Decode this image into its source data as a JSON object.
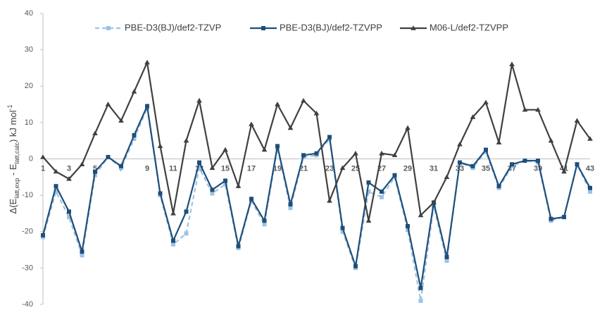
{
  "chart_data": {
    "type": "line",
    "y_label": [
      {
        "text": "Δ(E"
      },
      {
        "text": "latt,exp",
        "shift": "sub"
      },
      {
        "text": " - E"
      },
      {
        "text": "latt,calc",
        "shift": "sub"
      },
      {
        "text": ") kJ mol"
      },
      {
        "text": "-1",
        "shift": "super"
      }
    ],
    "categories": [
      1,
      null,
      3,
      null,
      5,
      null,
      7,
      null,
      9,
      null,
      11,
      null,
      13,
      null,
      15,
      null,
      17,
      null,
      19,
      null,
      21,
      null,
      23,
      null,
      25,
      null,
      27,
      null,
      29,
      null,
      31,
      null,
      33,
      null,
      35,
      null,
      37,
      null,
      39,
      null,
      41,
      null,
      43
    ],
    "series": [
      {
        "name": "PBE-D3(BJ)/def2-TZVP",
        "color": "#9dc3e6",
        "dash": true,
        "marker": "square",
        "values": [
          -21.5,
          -9,
          -16,
          -26.5,
          -4.5,
          0.5,
          -2.5,
          5.5,
          14,
          -10,
          -23.5,
          -20.5,
          -2.5,
          -9.5,
          -7,
          -24.5,
          -11.5,
          -18,
          3,
          -13.5,
          0.5,
          1,
          5.5,
          -20,
          -30,
          -9,
          -10.5,
          -5,
          -19.5,
          -39,
          -13,
          -28,
          -1,
          -2.5,
          2,
          -8,
          -2,
          -0.5,
          -1,
          -17,
          -16,
          -1.5,
          -9
        ]
      },
      {
        "name": "PBE-D3(BJ)/def2-TZVPP",
        "color": "#1f4e79",
        "dash": false,
        "marker": "square",
        "values": [
          -21,
          -7.5,
          -14.5,
          -25.5,
          -3.5,
          0.5,
          -2,
          6.5,
          14.5,
          -9.5,
          -22.5,
          -14.5,
          -1,
          -8.5,
          -6,
          -24,
          -11,
          -17,
          3.5,
          -12.5,
          1,
          1.5,
          6,
          -19,
          -29.5,
          -6.5,
          -9,
          -4.5,
          -18.5,
          -35.5,
          -12,
          -27,
          -1,
          -2,
          2.5,
          -7.5,
          -1.5,
          -0.5,
          -0.5,
          -16.5,
          -16,
          -1.5,
          -8
        ]
      },
      {
        "name": "M06-L/def2-TZVPP",
        "color": "#404040",
        "dash": false,
        "marker": "triangle",
        "values": [
          0.5,
          -3.5,
          -5.5,
          -1.5,
          7,
          15,
          10.5,
          18.5,
          26.5,
          3.5,
          -15,
          5,
          16,
          -2.5,
          2.5,
          -7.5,
          9.5,
          2.5,
          15,
          8.5,
          16,
          12.5,
          -11.5,
          -2.5,
          1.5,
          -17,
          1.5,
          1,
          8.5,
          -15.5,
          -12,
          -5,
          4,
          11.5,
          15.5,
          4.5,
          26,
          13.5,
          13.5,
          5,
          -3.5,
          10.5,
          5.5
        ]
      }
    ],
    "ylim": [
      -40,
      40
    ],
    "yticks": [
      -40,
      -30,
      -20,
      -10,
      0,
      10,
      20,
      30,
      40
    ],
    "grid": false,
    "legend": "top"
  }
}
